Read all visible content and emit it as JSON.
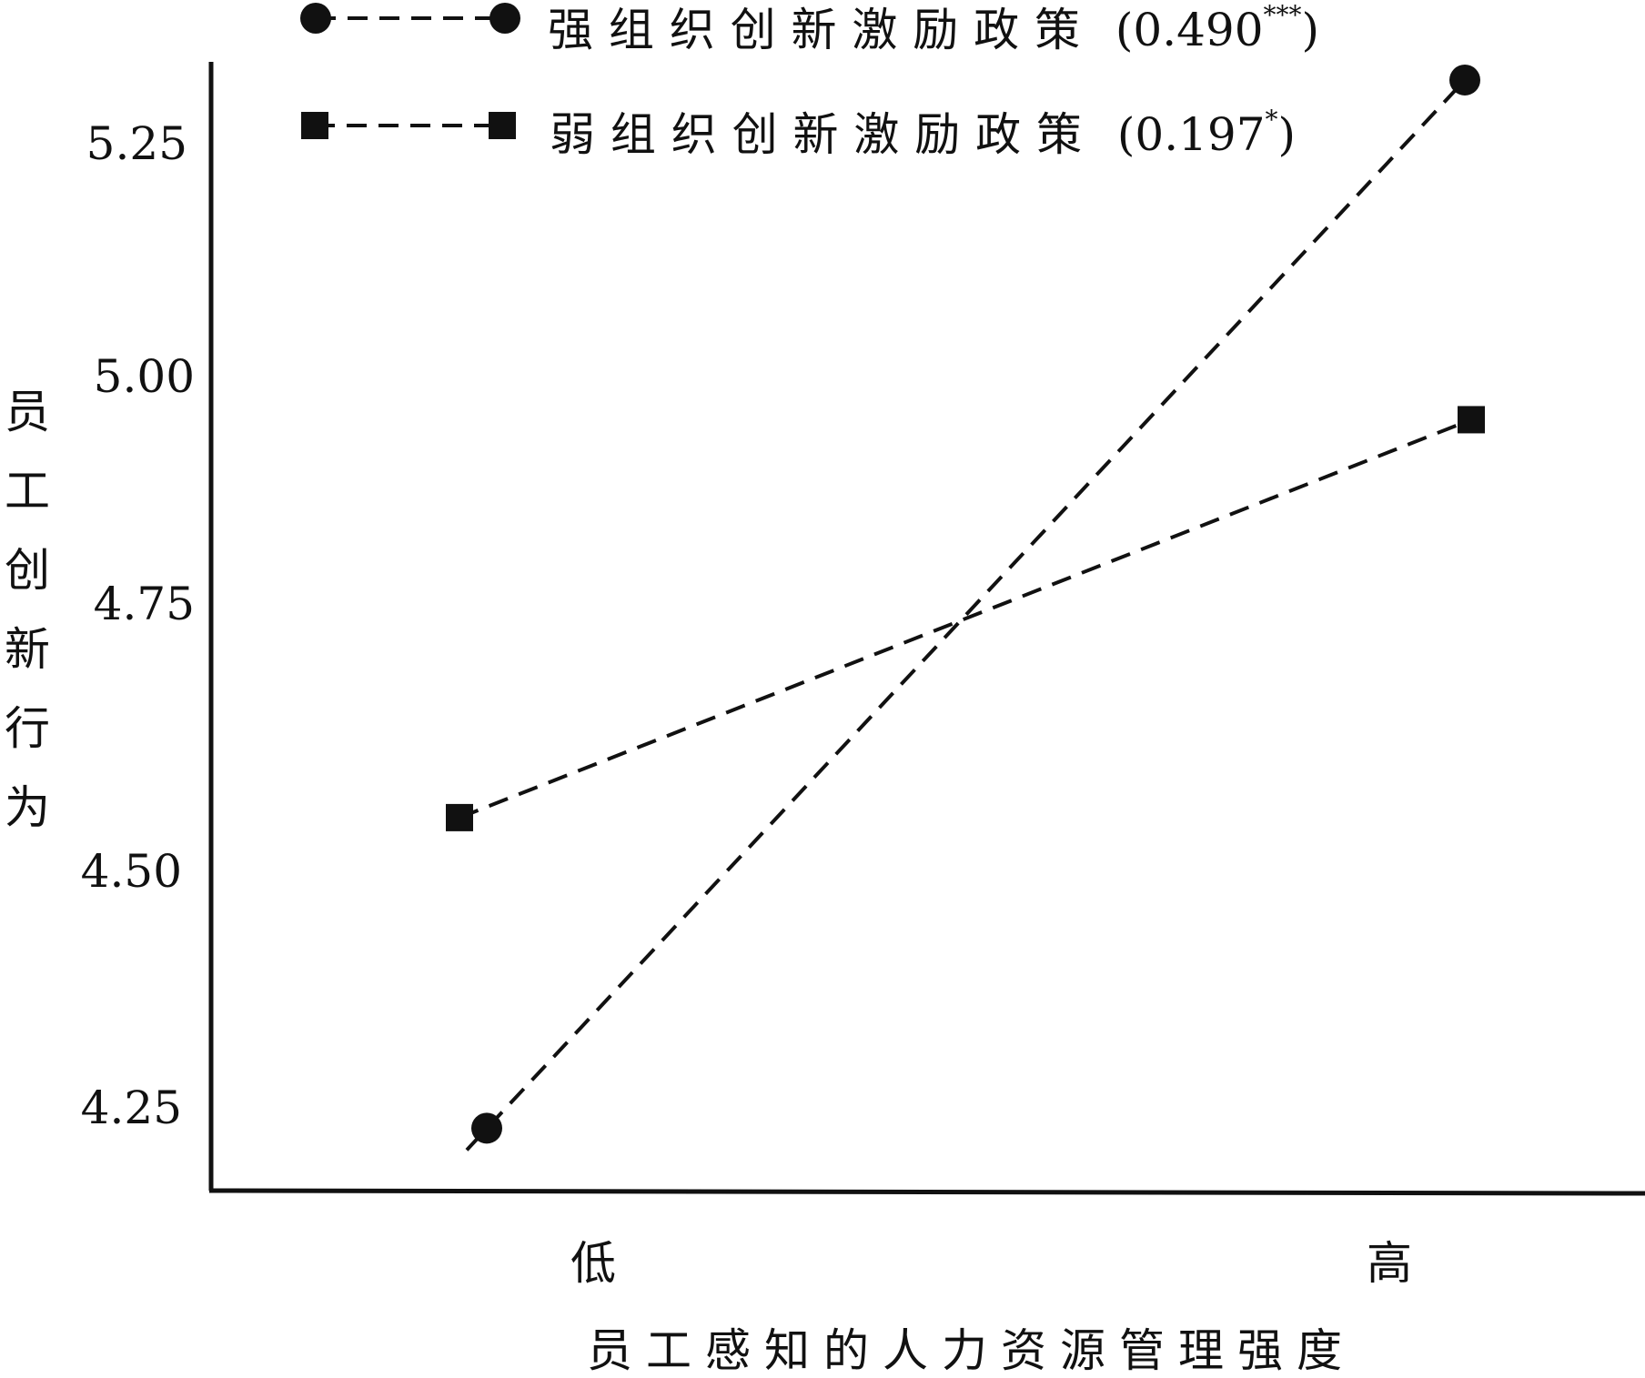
{
  "chart_data": {
    "type": "line",
    "title": "",
    "xlabel": "员工感知的人力资源管理强度",
    "ylabel": "员工创新行为",
    "categories": [
      "低",
      "高"
    ],
    "yticks": [
      "4.25",
      "4.50",
      "4.75",
      "5.00",
      "5.25"
    ],
    "ylim": [
      4.14,
      5.37
    ],
    "grid": false,
    "legend_position": "top",
    "series": [
      {
        "name": "强组织创新激励政策",
        "coefficient": "(0.490",
        "significance": "***",
        "coefficient_close": ")",
        "marker": "circle",
        "line_style": "dashed",
        "values": [
          4.23,
          5.31
        ]
      },
      {
        "name": "弱组织创新激励政策",
        "coefficient": "(0.197",
        "significance": "*",
        "coefficient_close": ")",
        "marker": "square",
        "line_style": "dashed",
        "values": [
          4.55,
          4.96
        ]
      }
    ],
    "colors": {
      "ink": "#111111",
      "background": "#ffffff"
    }
  }
}
